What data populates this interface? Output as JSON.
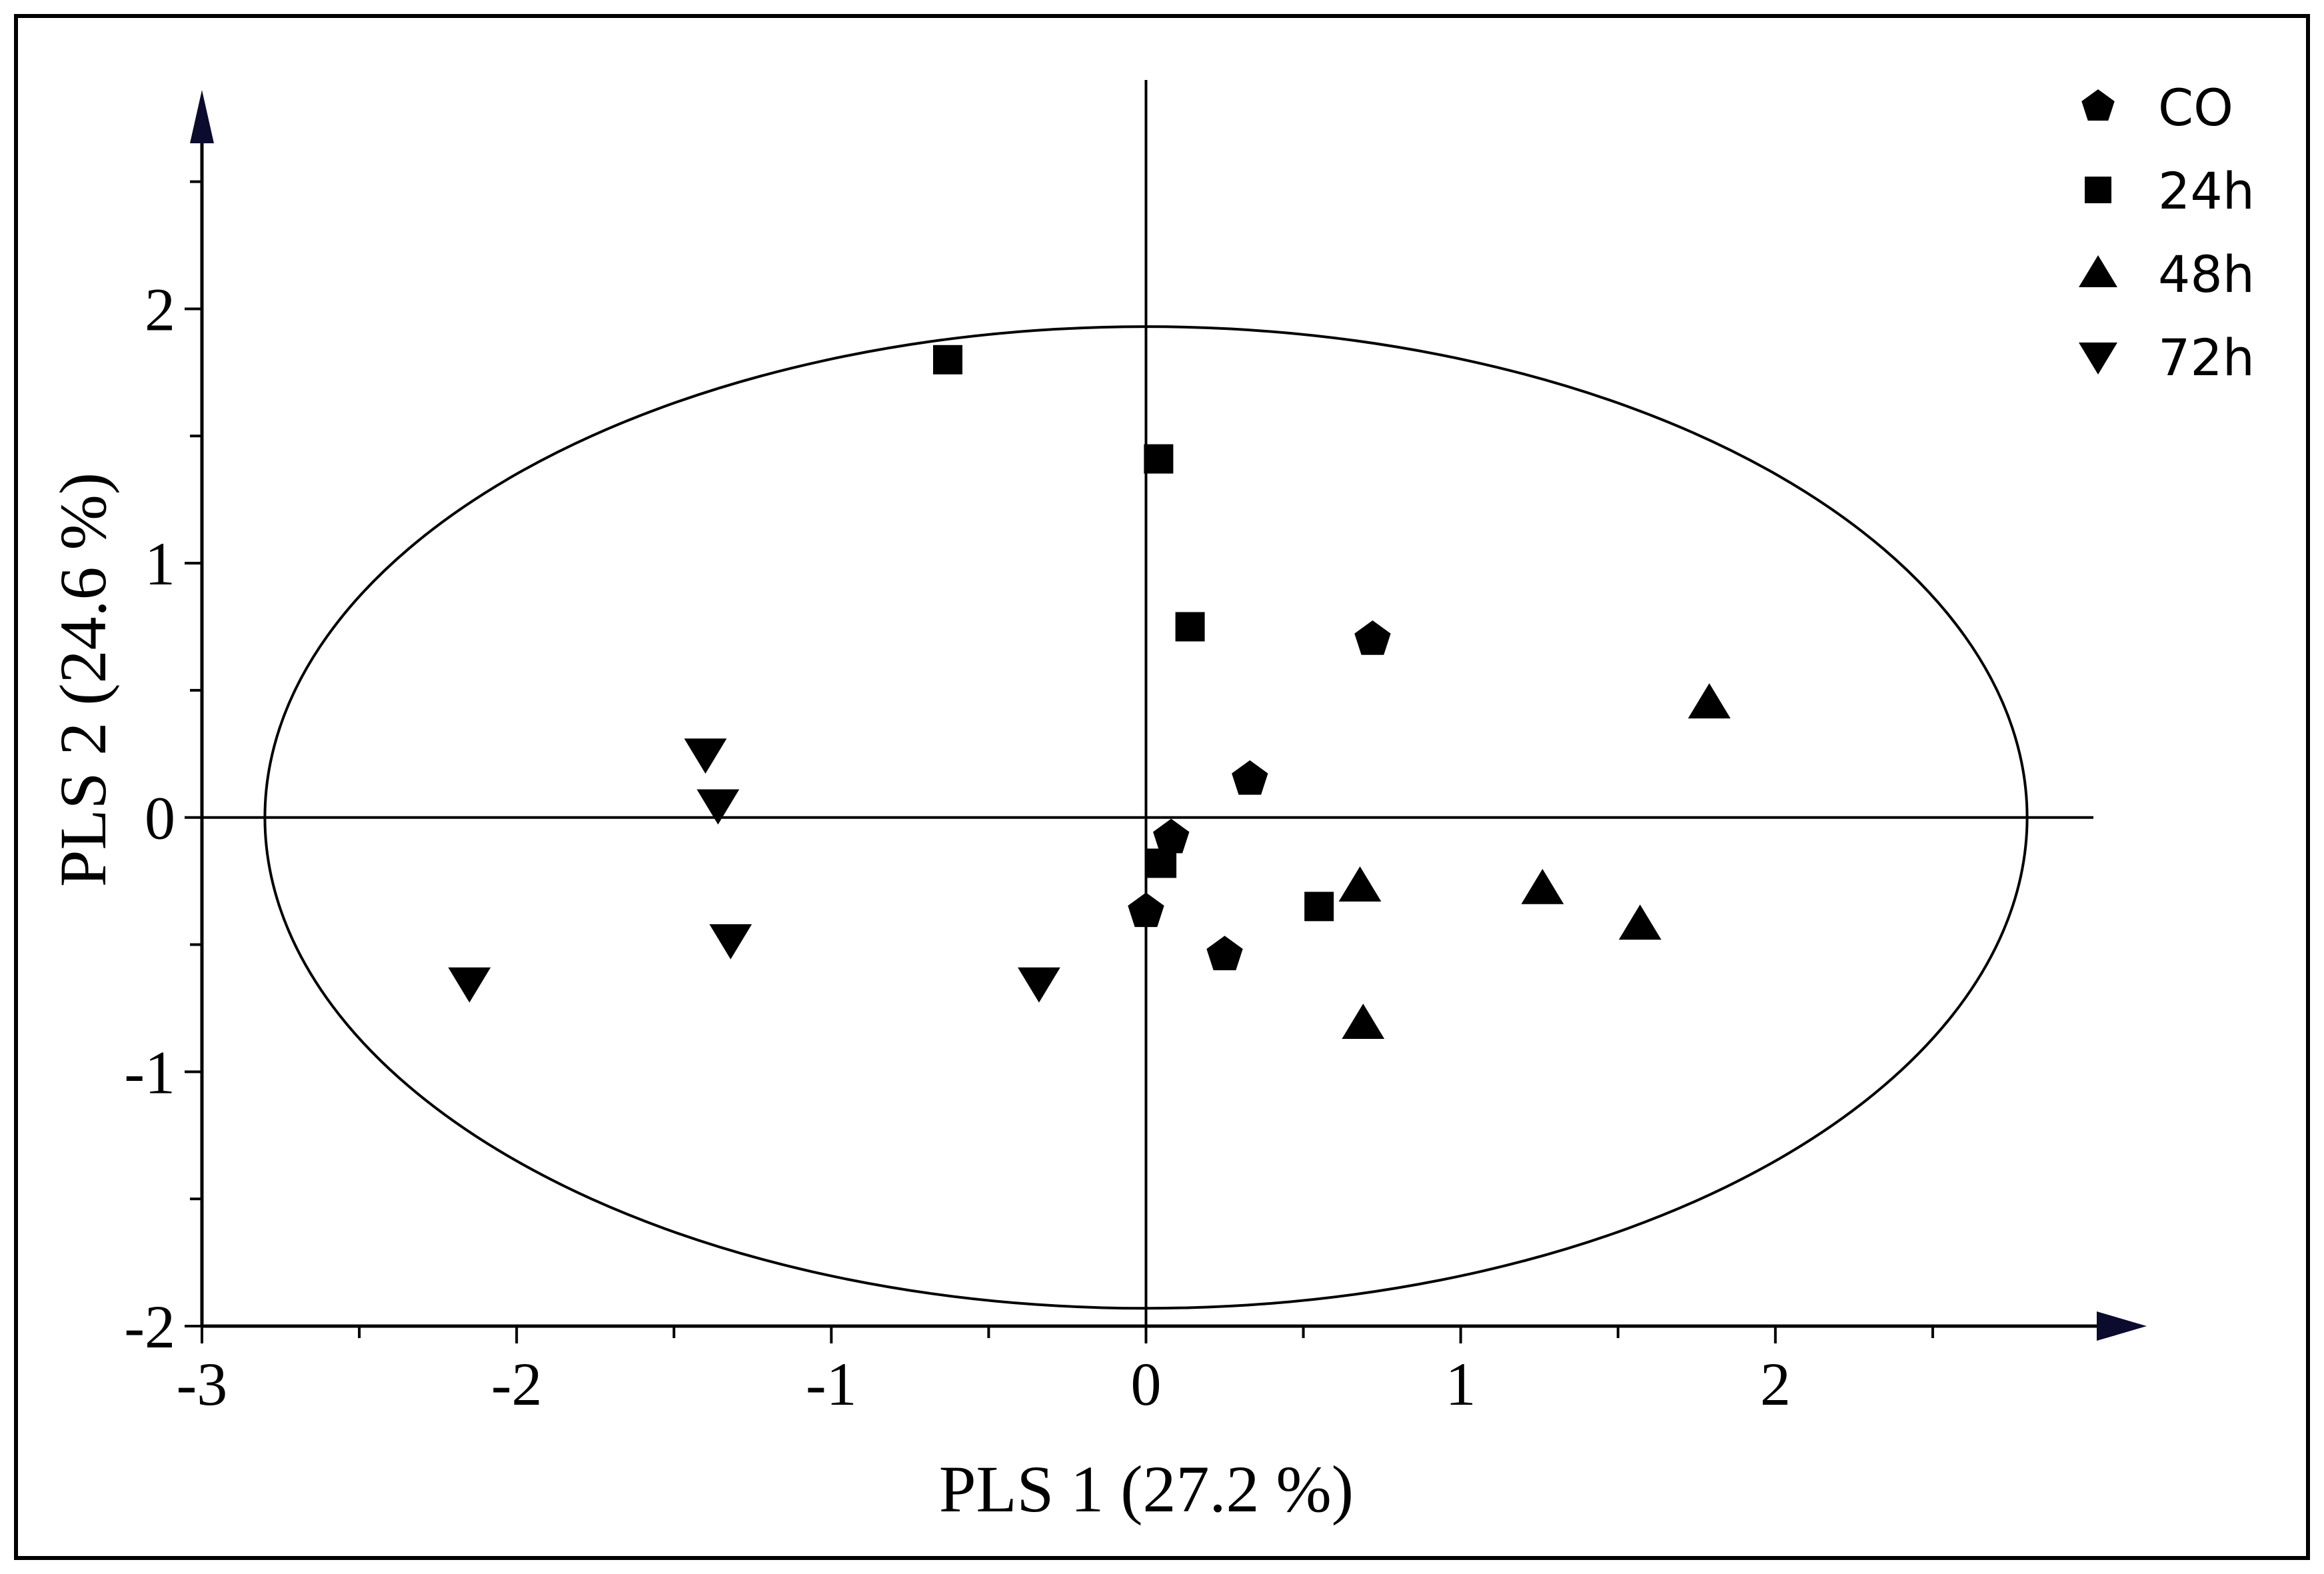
{
  "chart_data": {
    "type": "scatter",
    "title": "",
    "xlabel": "PLS 1 (27.2 %)",
    "ylabel": "PLS 2 (24.6 %)",
    "xlim": [
      -3,
      3
    ],
    "ylim": [
      -2,
      2.9
    ],
    "x_ticks": [
      -3,
      -2,
      -1,
      0,
      1,
      2
    ],
    "y_ticks": [
      -2,
      -1,
      0,
      1,
      2
    ],
    "grid": false,
    "legend_position": "top-right",
    "ellipse": {
      "center": [
        0,
        0
      ],
      "radius_x": 2.8,
      "radius_y": 1.93
    },
    "series": [
      {
        "name": "CO",
        "marker": "pentagon",
        "points": [
          [
            0.72,
            0.7
          ],
          [
            0.33,
            0.15
          ],
          [
            0.08,
            -0.08
          ],
          [
            0.0,
            -0.37
          ],
          [
            0.25,
            -0.54
          ]
        ]
      },
      {
        "name": "24h",
        "marker": "square",
        "points": [
          [
            -0.63,
            1.8
          ],
          [
            0.04,
            1.41
          ],
          [
            0.14,
            0.75
          ],
          [
            0.05,
            -0.18
          ],
          [
            0.55,
            -0.35
          ]
        ]
      },
      {
        "name": "48h",
        "marker": "triangle-up",
        "points": [
          [
            1.79,
            0.45
          ],
          [
            0.68,
            -0.27
          ],
          [
            1.26,
            -0.28
          ],
          [
            1.57,
            -0.42
          ],
          [
            0.69,
            -0.81
          ]
        ]
      },
      {
        "name": "72h",
        "marker": "triangle-down",
        "points": [
          [
            -1.4,
            0.25
          ],
          [
            -1.36,
            0.05
          ],
          [
            -1.32,
            -0.48
          ],
          [
            -2.15,
            -0.65
          ],
          [
            -0.34,
            -0.65
          ]
        ]
      }
    ]
  },
  "colors": {
    "marker": "#000000",
    "axis_arrow": "#0b0b2e",
    "frame": "#000000"
  }
}
